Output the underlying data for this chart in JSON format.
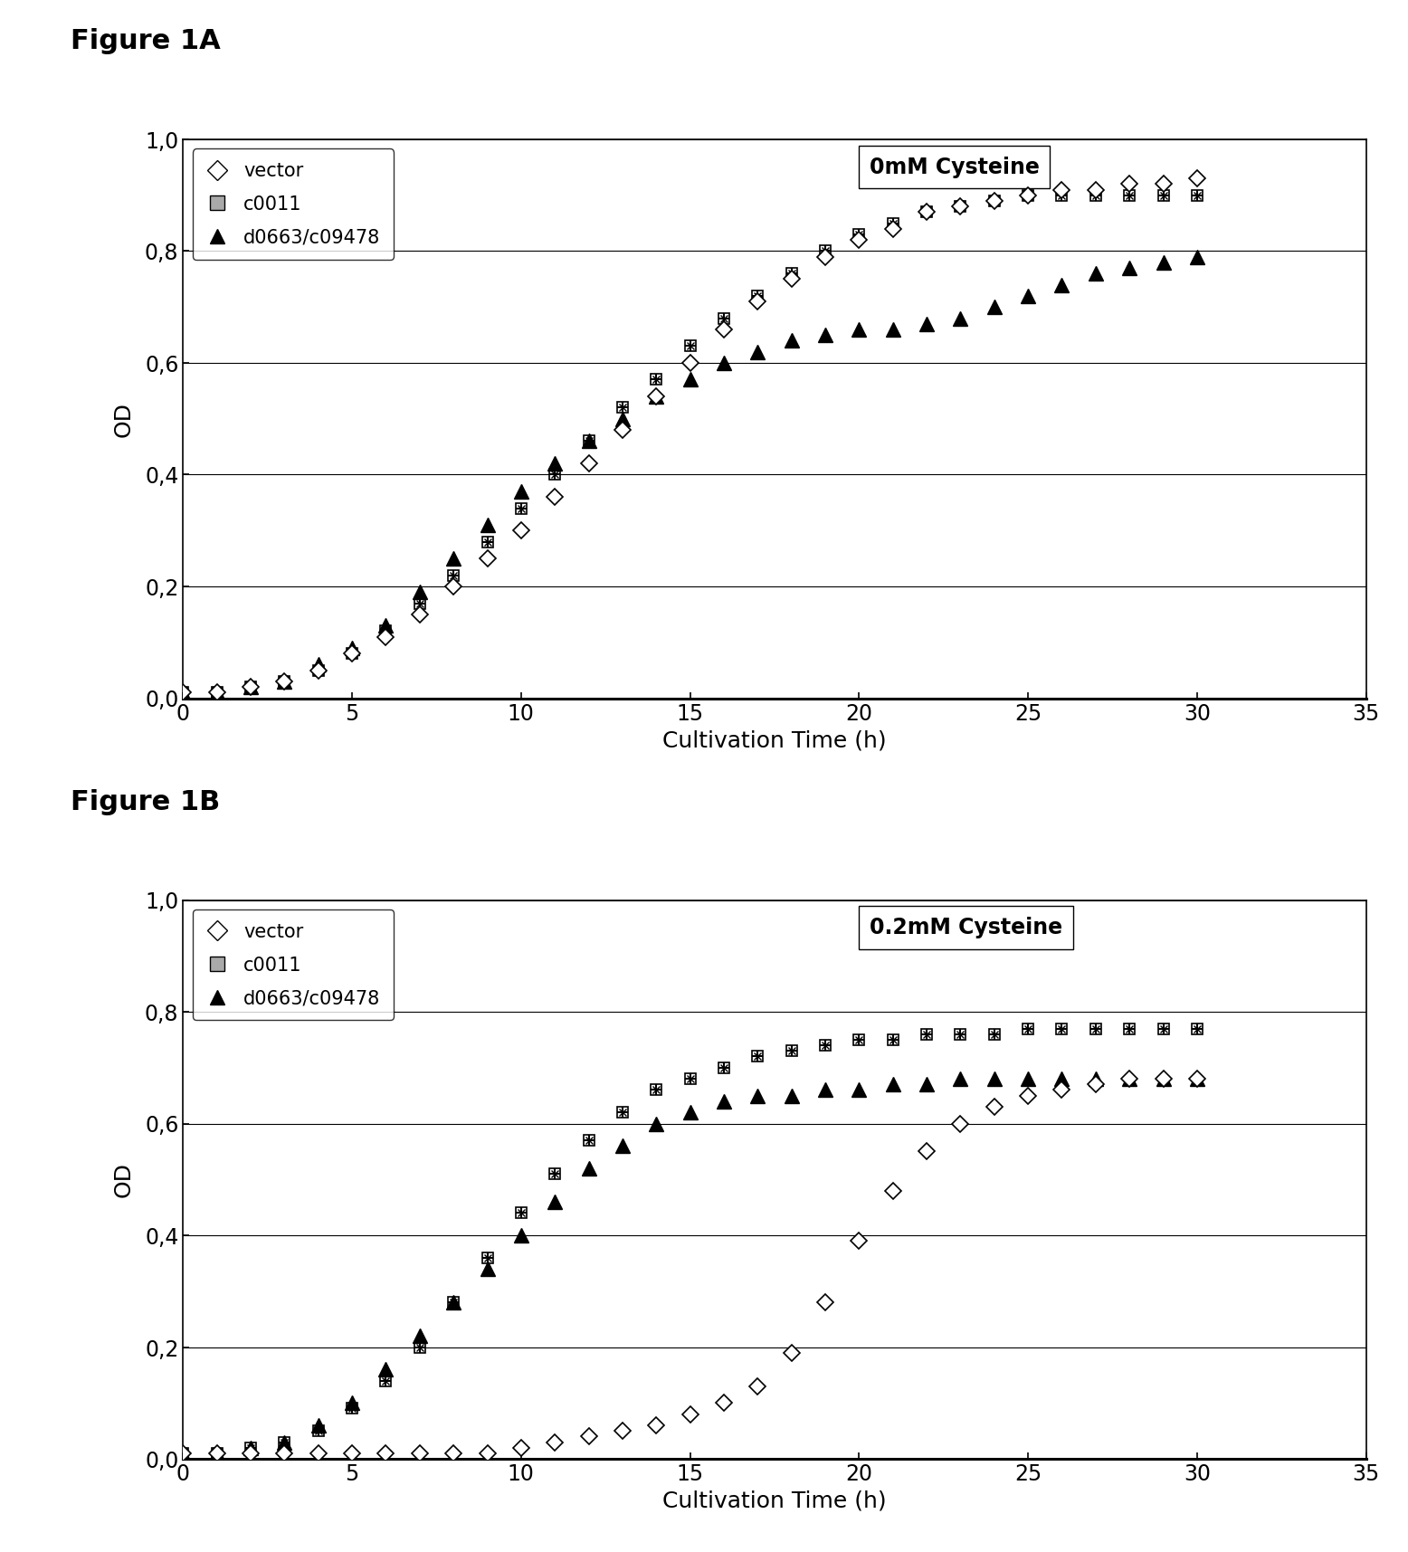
{
  "fig1A_title": "Figure 1A",
  "fig1B_title": "Figure 1B",
  "annotation_1A": "0mM Cysteine",
  "annotation_1B": "0.2mM Cysteine",
  "xlabel": "Cultivation Time (h)",
  "ylabel": "OD",
  "xlim": [
    0,
    35
  ],
  "ylim": [
    0.0,
    1.0
  ],
  "xticks": [
    0,
    5,
    10,
    15,
    20,
    25,
    30,
    35
  ],
  "yticks": [
    0.0,
    0.2,
    0.4,
    0.6,
    0.8,
    1.0
  ],
  "yticklabels": [
    "0,0",
    "0,2",
    "0,4",
    "0,6",
    "0,8",
    "1,0"
  ],
  "legend_labels": [
    "vector",
    "c0011",
    "d0663/c09478"
  ],
  "background_color": "#ffffff",
  "1A_vector_x": [
    0,
    1,
    2,
    3,
    4,
    5,
    6,
    7,
    8,
    9,
    10,
    11,
    12,
    13,
    14,
    15,
    16,
    17,
    18,
    19,
    20,
    21,
    22,
    23,
    24,
    25,
    26,
    27,
    28,
    29,
    30
  ],
  "1A_vector_y": [
    0.01,
    0.01,
    0.02,
    0.03,
    0.05,
    0.08,
    0.11,
    0.15,
    0.2,
    0.25,
    0.3,
    0.36,
    0.42,
    0.48,
    0.54,
    0.6,
    0.66,
    0.71,
    0.75,
    0.79,
    0.82,
    0.84,
    0.87,
    0.88,
    0.89,
    0.9,
    0.91,
    0.91,
    0.92,
    0.92,
    0.93
  ],
  "1A_c0011_x": [
    0,
    1,
    2,
    3,
    4,
    5,
    6,
    7,
    8,
    9,
    10,
    11,
    12,
    13,
    14,
    15,
    16,
    17,
    18,
    19,
    20,
    21,
    22,
    23,
    24,
    25,
    26,
    27,
    28,
    29,
    30
  ],
  "1A_c0011_y": [
    0.01,
    0.01,
    0.02,
    0.03,
    0.05,
    0.08,
    0.12,
    0.17,
    0.22,
    0.28,
    0.34,
    0.4,
    0.46,
    0.52,
    0.57,
    0.63,
    0.68,
    0.72,
    0.76,
    0.8,
    0.83,
    0.85,
    0.87,
    0.88,
    0.89,
    0.9,
    0.9,
    0.9,
    0.9,
    0.9,
    0.9
  ],
  "1A_d0663_x": [
    0,
    1,
    2,
    3,
    4,
    5,
    6,
    7,
    8,
    9,
    10,
    11,
    12,
    13,
    14,
    15,
    16,
    17,
    18,
    19,
    20,
    21,
    22,
    23,
    24,
    25,
    26,
    27,
    28,
    29,
    30
  ],
  "1A_d0663_y": [
    0.01,
    0.01,
    0.02,
    0.03,
    0.06,
    0.09,
    0.13,
    0.19,
    0.25,
    0.31,
    0.37,
    0.42,
    0.46,
    0.5,
    0.54,
    0.57,
    0.6,
    0.62,
    0.64,
    0.65,
    0.66,
    0.66,
    0.67,
    0.68,
    0.7,
    0.72,
    0.74,
    0.76,
    0.77,
    0.78,
    0.79
  ],
  "1B_vector_x": [
    0,
    1,
    2,
    3,
    4,
    5,
    6,
    7,
    8,
    9,
    10,
    11,
    12,
    13,
    14,
    15,
    16,
    17,
    18,
    19,
    20,
    21,
    22,
    23,
    24,
    25,
    26,
    27,
    28,
    29,
    30
  ],
  "1B_vector_y": [
    0.01,
    0.01,
    0.01,
    0.01,
    0.01,
    0.01,
    0.01,
    0.01,
    0.01,
    0.01,
    0.02,
    0.03,
    0.04,
    0.05,
    0.06,
    0.08,
    0.1,
    0.13,
    0.19,
    0.28,
    0.39,
    0.48,
    0.55,
    0.6,
    0.63,
    0.65,
    0.66,
    0.67,
    0.68,
    0.68,
    0.68
  ],
  "1B_c0011_x": [
    0,
    1,
    2,
    3,
    4,
    5,
    6,
    7,
    8,
    9,
    10,
    11,
    12,
    13,
    14,
    15,
    16,
    17,
    18,
    19,
    20,
    21,
    22,
    23,
    24,
    25,
    26,
    27,
    28,
    29,
    30
  ],
  "1B_c0011_y": [
    0.01,
    0.01,
    0.02,
    0.03,
    0.05,
    0.09,
    0.14,
    0.2,
    0.28,
    0.36,
    0.44,
    0.51,
    0.57,
    0.62,
    0.66,
    0.68,
    0.7,
    0.72,
    0.73,
    0.74,
    0.75,
    0.75,
    0.76,
    0.76,
    0.76,
    0.77,
    0.77,
    0.77,
    0.77,
    0.77,
    0.77
  ],
  "1B_d0663_x": [
    0,
    1,
    2,
    3,
    4,
    5,
    6,
    7,
    8,
    9,
    10,
    11,
    12,
    13,
    14,
    15,
    16,
    17,
    18,
    19,
    20,
    21,
    22,
    23,
    24,
    25,
    26,
    27,
    28,
    29,
    30
  ],
  "1B_d0663_y": [
    0.01,
    0.01,
    0.02,
    0.03,
    0.06,
    0.1,
    0.16,
    0.22,
    0.28,
    0.34,
    0.4,
    0.46,
    0.52,
    0.56,
    0.6,
    0.62,
    0.64,
    0.65,
    0.65,
    0.66,
    0.66,
    0.67,
    0.67,
    0.68,
    0.68,
    0.68,
    0.68,
    0.68,
    0.68,
    0.68,
    0.68
  ]
}
